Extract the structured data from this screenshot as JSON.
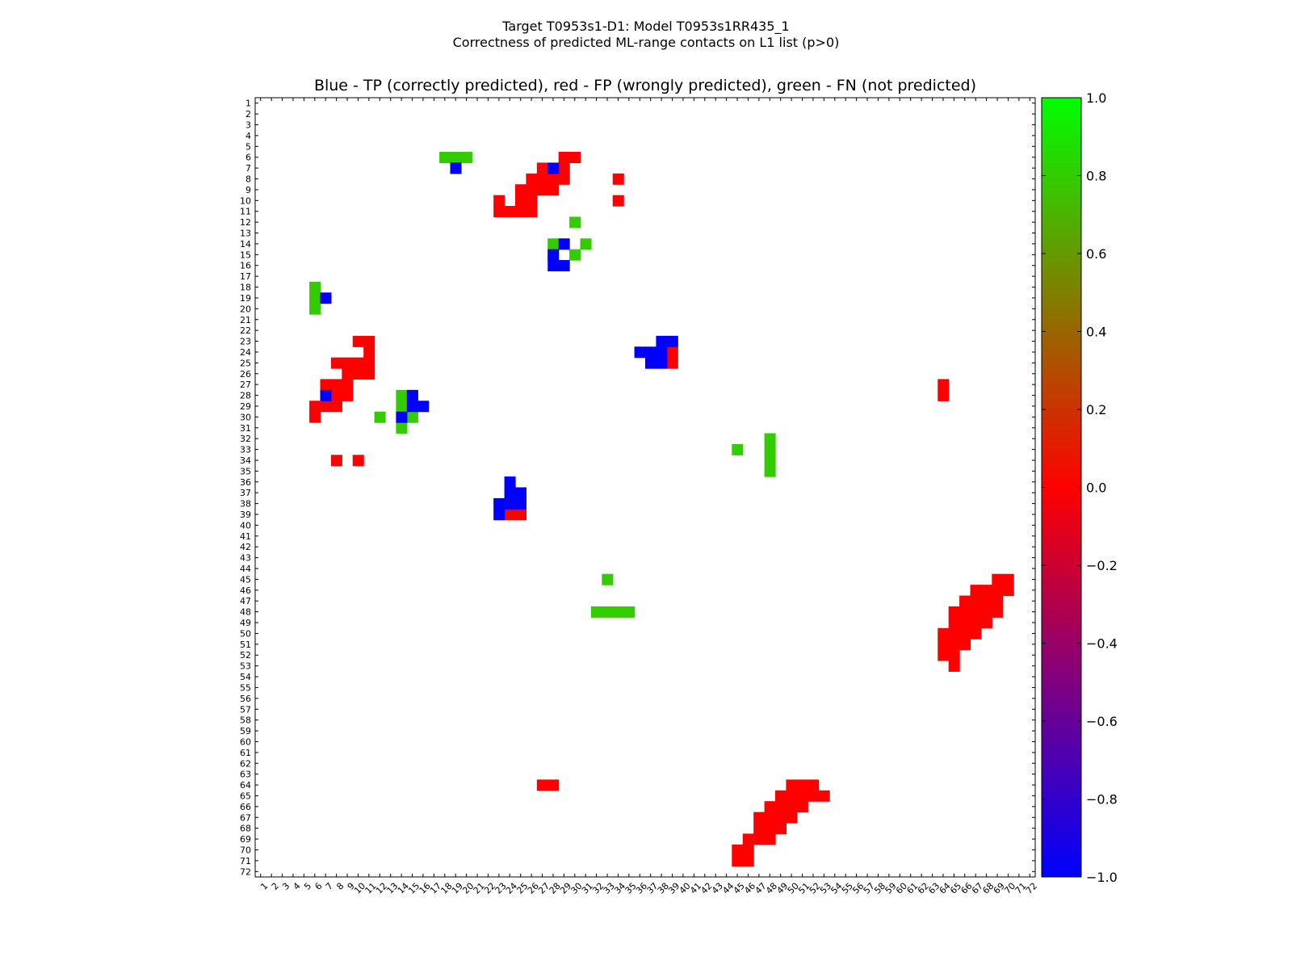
{
  "figure": {
    "suptitle_line1": "Target T0953s1-D1: Model T0953s1RR435_1",
    "suptitle_line2": "Correctness of predicted ML-range contacts on L1 list (p>0)"
  },
  "chart_data": {
    "type": "heatmap",
    "title": "Blue - TP (correctly predicted), red - FP (wrongly predicted), green - FN (not predicted)",
    "xlabel": "",
    "ylabel": "",
    "n": 72,
    "x_ticks": [
      1,
      2,
      3,
      4,
      5,
      6,
      7,
      8,
      9,
      10,
      11,
      12,
      13,
      14,
      15,
      16,
      17,
      18,
      19,
      20,
      21,
      22,
      23,
      24,
      25,
      26,
      27,
      28,
      29,
      30,
      31,
      32,
      33,
      34,
      35,
      36,
      37,
      38,
      39,
      40,
      41,
      42,
      43,
      44,
      45,
      46,
      47,
      48,
      49,
      50,
      51,
      52,
      53,
      54,
      55,
      56,
      57,
      58,
      59,
      60,
      61,
      62,
      63,
      64,
      65,
      66,
      67,
      68,
      69,
      70,
      71,
      72
    ],
    "y_ticks": [
      1,
      2,
      3,
      4,
      5,
      6,
      7,
      8,
      9,
      10,
      11,
      12,
      13,
      14,
      15,
      16,
      17,
      18,
      19,
      20,
      21,
      22,
      23,
      24,
      25,
      26,
      27,
      28,
      29,
      30,
      31,
      32,
      33,
      34,
      35,
      36,
      37,
      38,
      39,
      40,
      41,
      42,
      43,
      44,
      45,
      46,
      47,
      48,
      49,
      50,
      51,
      52,
      53,
      54,
      55,
      56,
      57,
      58,
      59,
      60,
      61,
      62,
      63,
      64,
      65,
      66,
      67,
      68,
      69,
      70,
      71,
      72
    ],
    "colorbar": {
      "min": -1.0,
      "max": 1.0,
      "ticks": [
        "1.0",
        "0.8",
        "0.6",
        "0.4",
        "0.2",
        "0.0",
        "−0.2",
        "−0.4",
        "−0.6",
        "−0.8",
        "−1.0"
      ],
      "tick_values": [
        1.0,
        0.8,
        0.6,
        0.4,
        0.2,
        0.0,
        -0.2,
        -0.4,
        -0.6,
        -0.8,
        -1.0
      ],
      "gradient_stops": [
        "#00ff00",
        "#ff0000",
        "#0000ff"
      ]
    },
    "categories": {
      "TP": {
        "value": -1.0,
        "color": "#0000ff"
      },
      "FP": {
        "value": 0.0,
        "color": "#ff0000"
      },
      "FN": {
        "value": 0.8,
        "color": "#33cc00"
      }
    },
    "cells": {
      "TP": [
        [
          19,
          7
        ],
        [
          28,
          7
        ],
        [
          29,
          14
        ],
        [
          28,
          15
        ],
        [
          28,
          16
        ],
        [
          29,
          16
        ],
        [
          7,
          19
        ],
        [
          38,
          23
        ],
        [
          39,
          23
        ],
        [
          36,
          24
        ],
        [
          37,
          24
        ],
        [
          38,
          24
        ],
        [
          37,
          25
        ],
        [
          38,
          25
        ],
        [
          7,
          28
        ],
        [
          15,
          28
        ],
        [
          15,
          29
        ],
        [
          16,
          29
        ],
        [
          14,
          30
        ],
        [
          24,
          36
        ],
        [
          24,
          37
        ],
        [
          25,
          37
        ],
        [
          23,
          38
        ],
        [
          24,
          38
        ],
        [
          25,
          38
        ],
        [
          23,
          39
        ]
      ],
      "FP": [
        [
          29,
          6
        ],
        [
          30,
          6
        ],
        [
          27,
          7
        ],
        [
          29,
          7
        ],
        [
          26,
          8
        ],
        [
          27,
          8
        ],
        [
          28,
          8
        ],
        [
          29,
          8
        ],
        [
          34,
          8
        ],
        [
          25,
          9
        ],
        [
          26,
          9
        ],
        [
          27,
          9
        ],
        [
          28,
          9
        ],
        [
          23,
          10
        ],
        [
          25,
          10
        ],
        [
          26,
          10
        ],
        [
          34,
          10
        ],
        [
          23,
          11
        ],
        [
          24,
          11
        ],
        [
          25,
          11
        ],
        [
          26,
          11
        ],
        [
          10,
          23
        ],
        [
          11,
          23
        ],
        [
          11,
          24
        ],
        [
          39,
          24
        ],
        [
          8,
          25
        ],
        [
          9,
          25
        ],
        [
          10,
          25
        ],
        [
          11,
          25
        ],
        [
          39,
          25
        ],
        [
          9,
          26
        ],
        [
          10,
          26
        ],
        [
          11,
          26
        ],
        [
          7,
          27
        ],
        [
          8,
          27
        ],
        [
          9,
          27
        ],
        [
          64,
          27
        ],
        [
          8,
          28
        ],
        [
          9,
          28
        ],
        [
          64,
          28
        ],
        [
          6,
          29
        ],
        [
          7,
          29
        ],
        [
          8,
          29
        ],
        [
          6,
          30
        ],
        [
          8,
          34
        ],
        [
          10,
          34
        ],
        [
          24,
          39
        ],
        [
          25,
          39
        ],
        [
          69,
          45
        ],
        [
          70,
          45
        ],
        [
          67,
          46
        ],
        [
          68,
          46
        ],
        [
          69,
          46
        ],
        [
          70,
          46
        ],
        [
          66,
          47
        ],
        [
          67,
          47
        ],
        [
          68,
          47
        ],
        [
          69,
          47
        ],
        [
          65,
          48
        ],
        [
          66,
          48
        ],
        [
          67,
          48
        ],
        [
          68,
          48
        ],
        [
          69,
          48
        ],
        [
          65,
          49
        ],
        [
          66,
          49
        ],
        [
          67,
          49
        ],
        [
          68,
          49
        ],
        [
          64,
          50
        ],
        [
          65,
          50
        ],
        [
          66,
          50
        ],
        [
          67,
          50
        ],
        [
          64,
          51
        ],
        [
          65,
          51
        ],
        [
          66,
          51
        ],
        [
          64,
          52
        ],
        [
          65,
          52
        ],
        [
          65,
          53
        ],
        [
          27,
          64
        ],
        [
          28,
          64
        ],
        [
          50,
          64
        ],
        [
          51,
          64
        ],
        [
          52,
          64
        ],
        [
          49,
          65
        ],
        [
          50,
          65
        ],
        [
          51,
          65
        ],
        [
          52,
          65
        ],
        [
          53,
          65
        ],
        [
          48,
          66
        ],
        [
          49,
          66
        ],
        [
          50,
          66
        ],
        [
          51,
          66
        ],
        [
          47,
          67
        ],
        [
          48,
          67
        ],
        [
          49,
          67
        ],
        [
          50,
          67
        ],
        [
          47,
          68
        ],
        [
          48,
          68
        ],
        [
          49,
          68
        ],
        [
          46,
          69
        ],
        [
          47,
          69
        ],
        [
          48,
          69
        ],
        [
          45,
          70
        ],
        [
          46,
          70
        ],
        [
          45,
          71
        ],
        [
          46,
          71
        ]
      ],
      "FN": [
        [
          18,
          6
        ],
        [
          19,
          6
        ],
        [
          20,
          6
        ],
        [
          30,
          12
        ],
        [
          28,
          14
        ],
        [
          31,
          14
        ],
        [
          28,
          15
        ],
        [
          30,
          15
        ],
        [
          6,
          18
        ],
        [
          6,
          19
        ],
        [
          6,
          20
        ],
        [
          14,
          28
        ],
        [
          15,
          28
        ],
        [
          14,
          29
        ],
        [
          12,
          30
        ],
        [
          15,
          30
        ],
        [
          14,
          31
        ],
        [
          48,
          32
        ],
        [
          45,
          33
        ],
        [
          48,
          33
        ],
        [
          48,
          34
        ],
        [
          48,
          35
        ],
        [
          33,
          45
        ],
        [
          32,
          48
        ],
        [
          33,
          48
        ],
        [
          34,
          48
        ],
        [
          35,
          48
        ]
      ]
    }
  }
}
